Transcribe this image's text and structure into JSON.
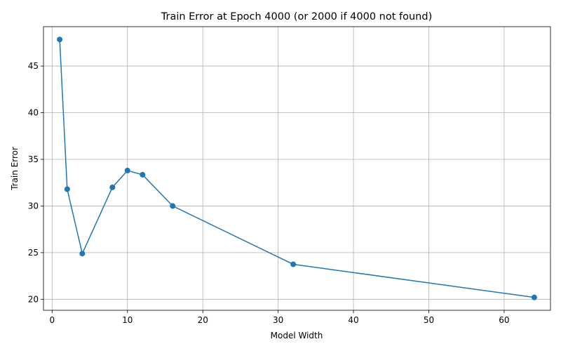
{
  "chart_data": {
    "type": "line",
    "title": "Train Error at Epoch 4000 (or 2000 if 4000 not found)",
    "xlabel": "Model Width",
    "ylabel": "Train Error",
    "xlim": [
      -1.15,
      66.15
    ],
    "ylim": [
      18.82,
      49.22
    ],
    "xticks": [
      0,
      10,
      20,
      30,
      40,
      50,
      60
    ],
    "yticks": [
      20,
      25,
      30,
      35,
      40,
      45
    ],
    "grid": true,
    "series": [
      {
        "color": "#1f77b4",
        "marker": "circle",
        "points": [
          {
            "x": 1,
            "y": 47.85
          },
          {
            "x": 2,
            "y": 31.8
          },
          {
            "x": 4,
            "y": 24.9
          },
          {
            "x": 8,
            "y": 32.0
          },
          {
            "x": 10,
            "y": 33.8
          },
          {
            "x": 12,
            "y": 33.35
          },
          {
            "x": 16,
            "y": 30.0
          },
          {
            "x": 32,
            "y": 23.75
          },
          {
            "x": 64,
            "y": 20.2
          }
        ]
      }
    ]
  }
}
